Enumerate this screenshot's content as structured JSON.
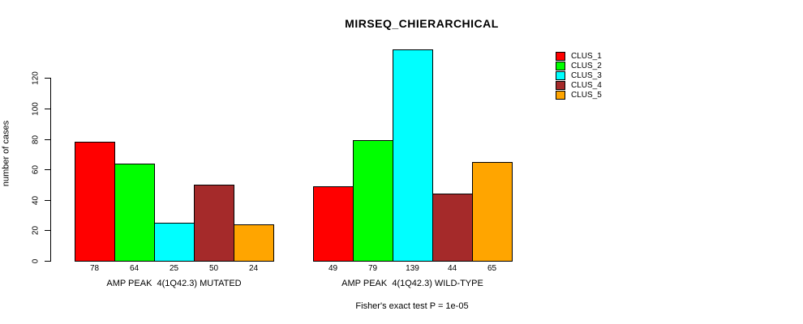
{
  "title": "MIRSEQ_CHIERARCHICAL",
  "chart_data": {
    "type": "bar",
    "title": "MIRSEQ_CHIERARCHICAL",
    "ylabel": "number of cases",
    "xlabel": "",
    "yticks": [
      0,
      20,
      40,
      60,
      80,
      100,
      120
    ],
    "ylim": [
      0,
      139
    ],
    "grid": false,
    "legend_position": "top-right",
    "legend": [
      {
        "label": "CLUS_1",
        "color": "#FF0000"
      },
      {
        "label": "CLUS_2",
        "color": "#00FF00"
      },
      {
        "label": "CLUS_3",
        "color": "#00FFFF"
      },
      {
        "label": "CLUS_4",
        "color": "#A52A2A"
      },
      {
        "label": "CLUS_5",
        "color": "#FFA500"
      }
    ],
    "categories": [
      "CLUS_1",
      "CLUS_2",
      "CLUS_3",
      "CLUS_4",
      "CLUS_5"
    ],
    "groups": [
      {
        "label": "AMP PEAK  4(1Q42.3) MUTATED",
        "values": [
          78,
          64,
          25,
          50,
          24
        ]
      },
      {
        "label": "AMP PEAK  4(1Q42.3) WILD-TYPE",
        "values": [
          49,
          79,
          139,
          44,
          65
        ]
      }
    ],
    "annotation": "Fisher's exact test P = 1e-05"
  },
  "colors": {
    "axis": "#000000",
    "text": "#000000",
    "background": "#FFFFFF"
  }
}
